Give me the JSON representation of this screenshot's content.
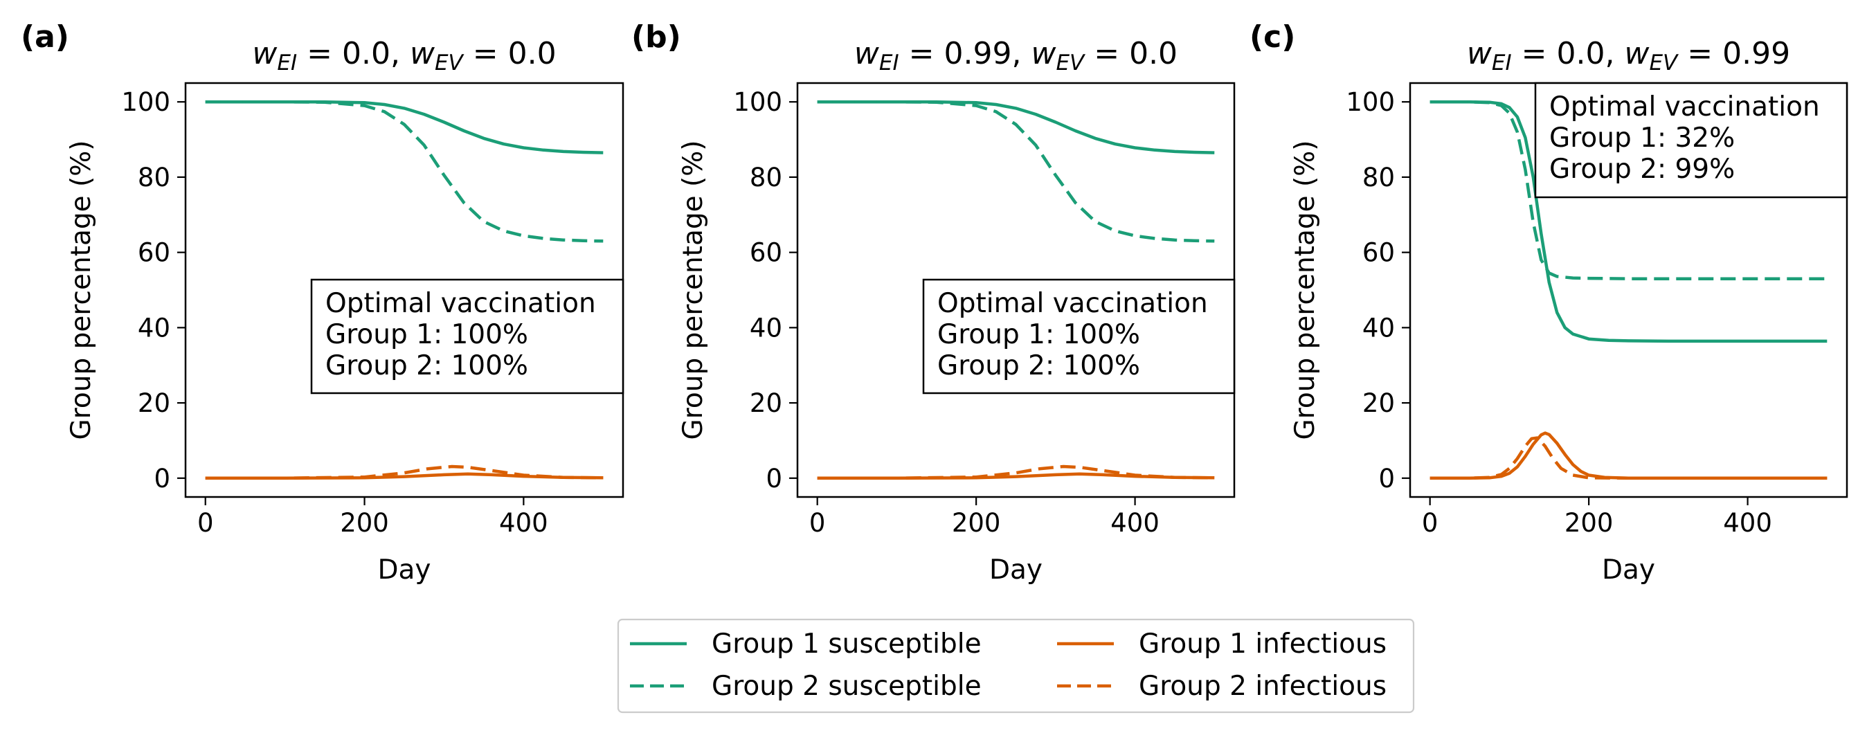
{
  "chart_data": [
    {
      "type": "line",
      "panel_label": "(a)",
      "title_parts": {
        "w1": "w",
        "s1": "EI",
        "v1": " = 0.0, ",
        "w2": "w",
        "s2": "EV",
        "v2": " = 0.0"
      },
      "xlabel": "Day",
      "ylabel": "Group percentage (%)",
      "xlim": [
        -25,
        525
      ],
      "ylim": [
        -5,
        105
      ],
      "xticks": [
        0,
        200,
        400
      ],
      "yticks": [
        0,
        20,
        40,
        60,
        80,
        100
      ],
      "annotation": [
        "Optimal vaccination",
        "Group 1: 100%",
        "Group 2: 100%"
      ],
      "annotation_position": "center-right",
      "series": [
        {
          "name": "Group 1 susceptible",
          "color": "#1b9e77",
          "dash": "solid",
          "x": [
            0,
            50,
            100,
            150,
            200,
            225,
            250,
            275,
            300,
            325,
            350,
            375,
            400,
            425,
            450,
            475,
            500
          ],
          "y": [
            100,
            100,
            100,
            100,
            99.8,
            99.3,
            98.3,
            96.7,
            94.6,
            92.3,
            90.3,
            88.8,
            87.8,
            87.2,
            86.8,
            86.6,
            86.5
          ]
        },
        {
          "name": "Group 2 susceptible",
          "color": "#1b9e77",
          "dash": "dashed",
          "x": [
            0,
            50,
            100,
            150,
            200,
            225,
            250,
            275,
            300,
            325,
            350,
            375,
            400,
            425,
            450,
            475,
            500
          ],
          "y": [
            100,
            100,
            100,
            99.9,
            99,
            97.4,
            94,
            88.5,
            80.5,
            73.2,
            68.2,
            65.7,
            64.4,
            63.7,
            63.3,
            63.1,
            63
          ]
        },
        {
          "name": "Group 1 infectious",
          "color": "#d95f02",
          "dash": "solid",
          "x": [
            0,
            100,
            200,
            250,
            300,
            330,
            360,
            400,
            450,
            500
          ],
          "y": [
            0,
            0,
            0.1,
            0.4,
            0.9,
            1.1,
            0.9,
            0.5,
            0.2,
            0.1
          ]
        },
        {
          "name": "Group 2 infectious",
          "color": "#d95f02",
          "dash": "dashed",
          "x": [
            0,
            100,
            200,
            250,
            280,
            310,
            330,
            360,
            400,
            450,
            500
          ],
          "y": [
            0,
            0,
            0.3,
            1.4,
            2.5,
            3.1,
            2.9,
            2,
            0.8,
            0.2,
            0.1
          ]
        }
      ]
    },
    {
      "type": "line",
      "panel_label": "(b)",
      "title_parts": {
        "w1": "w",
        "s1": "EI",
        "v1": " = 0.99, ",
        "w2": "w",
        "s2": "EV",
        "v2": " = 0.0"
      },
      "xlabel": "Day",
      "ylabel": "Group percentage (%)",
      "xlim": [
        -25,
        525
      ],
      "ylim": [
        -5,
        105
      ],
      "xticks": [
        0,
        200,
        400
      ],
      "yticks": [
        0,
        20,
        40,
        60,
        80,
        100
      ],
      "annotation": [
        "Optimal vaccination",
        "Group 1: 100%",
        "Group 2: 100%"
      ],
      "annotation_position": "center-right",
      "series": [
        {
          "name": "Group 1 susceptible",
          "color": "#1b9e77",
          "dash": "solid",
          "x": [
            0,
            50,
            100,
            150,
            200,
            225,
            250,
            275,
            300,
            325,
            350,
            375,
            400,
            425,
            450,
            475,
            500
          ],
          "y": [
            100,
            100,
            100,
            100,
            99.8,
            99.3,
            98.3,
            96.7,
            94.6,
            92.3,
            90.3,
            88.8,
            87.8,
            87.2,
            86.8,
            86.6,
            86.5
          ]
        },
        {
          "name": "Group 2 susceptible",
          "color": "#1b9e77",
          "dash": "dashed",
          "x": [
            0,
            50,
            100,
            150,
            200,
            225,
            250,
            275,
            300,
            325,
            350,
            375,
            400,
            425,
            450,
            475,
            500
          ],
          "y": [
            100,
            100,
            100,
            99.9,
            99,
            97.4,
            94,
            88.5,
            80.5,
            73.2,
            68.2,
            65.7,
            64.4,
            63.7,
            63.3,
            63.1,
            63
          ]
        },
        {
          "name": "Group 1 infectious",
          "color": "#d95f02",
          "dash": "solid",
          "x": [
            0,
            100,
            200,
            250,
            300,
            330,
            360,
            400,
            450,
            500
          ],
          "y": [
            0,
            0,
            0.1,
            0.4,
            0.9,
            1.1,
            0.9,
            0.5,
            0.2,
            0.1
          ]
        },
        {
          "name": "Group 2 infectious",
          "color": "#d95f02",
          "dash": "dashed",
          "x": [
            0,
            100,
            200,
            250,
            280,
            310,
            330,
            360,
            400,
            450,
            500
          ],
          "y": [
            0,
            0,
            0.3,
            1.4,
            2.5,
            3.1,
            2.9,
            2,
            0.8,
            0.2,
            0.1
          ]
        }
      ]
    },
    {
      "type": "line",
      "panel_label": "(c)",
      "title_parts": {
        "w1": "w",
        "s1": "EI",
        "v1": " = 0.0, ",
        "w2": "w",
        "s2": "EV",
        "v2": " = 0.99"
      },
      "xlabel": "Day",
      "ylabel": "Group percentage (%)",
      "xlim": [
        -25,
        525
      ],
      "ylim": [
        -5,
        105
      ],
      "xticks": [
        0,
        200,
        400
      ],
      "yticks": [
        0,
        20,
        40,
        60,
        80,
        100
      ],
      "annotation": [
        "Optimal vaccination",
        "Group 1: 32%",
        "Group 2: 99%"
      ],
      "annotation_position": "top-right",
      "series": [
        {
          "name": "Group 1 susceptible",
          "color": "#1b9e77",
          "dash": "solid",
          "x": [
            0,
            50,
            75,
            90,
            100,
            110,
            120,
            130,
            140,
            150,
            160,
            170,
            180,
            200,
            225,
            250,
            300,
            500
          ],
          "y": [
            100,
            100,
            99.9,
            99.5,
            98.5,
            96,
            90.5,
            80,
            65,
            52,
            44,
            40,
            38.3,
            37,
            36.6,
            36.5,
            36.4,
            36.4
          ]
        },
        {
          "name": "Group 2 susceptible",
          "color": "#1b9e77",
          "dash": "dashed",
          "x": [
            0,
            50,
            75,
            90,
            100,
            110,
            120,
            130,
            140,
            150,
            160,
            180,
            200,
            250,
            500
          ],
          "y": [
            100,
            100,
            99.8,
            99,
            97,
            92,
            82,
            68,
            58,
            54.5,
            53.6,
            53.2,
            53.1,
            53,
            53
          ]
        },
        {
          "name": "Group 1 infectious",
          "color": "#d95f02",
          "dash": "solid",
          "x": [
            0,
            50,
            75,
            90,
            100,
            110,
            120,
            130,
            140,
            145,
            150,
            160,
            170,
            180,
            190,
            200,
            220,
            250,
            300,
            500
          ],
          "y": [
            0,
            0,
            0.1,
            0.5,
            1.3,
            3,
            5.8,
            9,
            11.5,
            12,
            11.6,
            9.3,
            6.3,
            3.6,
            1.8,
            0.8,
            0.2,
            0,
            0,
            0
          ]
        },
        {
          "name": "Group 2 infectious",
          "color": "#d95f02",
          "dash": "dashed",
          "x": [
            0,
            50,
            75,
            90,
            100,
            110,
            120,
            128,
            135,
            145,
            155,
            165,
            180,
            200,
            250,
            500
          ],
          "y": [
            0,
            0,
            0.2,
            1,
            2.6,
            5.2,
            8.5,
            10.5,
            10.7,
            8.5,
            5.2,
            2.6,
            0.8,
            0.1,
            0,
            0
          ]
        }
      ]
    }
  ],
  "legend": {
    "position": "bottom-center",
    "entries": [
      {
        "label": "Group 1 susceptible",
        "color": "#1b9e77",
        "dash": "solid"
      },
      {
        "label": "Group 2 susceptible",
        "color": "#1b9e77",
        "dash": "dashed"
      },
      {
        "label": "Group 1 infectious",
        "color": "#d95f02",
        "dash": "solid"
      },
      {
        "label": "Group 2 infectious",
        "color": "#d95f02",
        "dash": "dashed"
      }
    ]
  }
}
